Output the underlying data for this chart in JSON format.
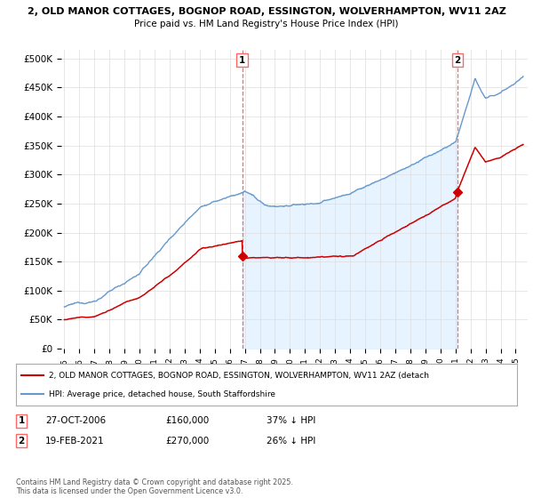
{
  "title_line1": "2, OLD MANOR COTTAGES, BOGNOP ROAD, ESSINGTON, WOLVERHAMPTON, WV11 2AZ",
  "title_line2": "Price paid vs. HM Land Registry's House Price Index (HPI)",
  "yticks": [
    0,
    50000,
    100000,
    150000,
    200000,
    250000,
    300000,
    350000,
    400000,
    450000,
    500000
  ],
  "ytick_labels": [
    "£0",
    "£50K",
    "£100K",
    "£150K",
    "£200K",
    "£250K",
    "£300K",
    "£350K",
    "£400K",
    "£450K",
    "£500K"
  ],
  "ylim": [
    0,
    515000
  ],
  "sale1_date_x": 2006.82,
  "sale1_price": 160000,
  "sale1_label": "27-OCT-2006",
  "sale1_pct": "37% ↓ HPI",
  "sale2_date_x": 2021.12,
  "sale2_price": 270000,
  "sale2_label": "19-FEB-2021",
  "sale2_pct": "26% ↓ HPI",
  "red_color": "#cc0000",
  "blue_color": "#6699cc",
  "blue_fill_color": "#ddeeff",
  "vline_color": "#ff6666",
  "grid_color": "#dddddd",
  "background_color": "#ffffff",
  "legend_label_red": "2, OLD MANOR COTTAGES, BOGNOP ROAD, ESSINGTON, WOLVERHAMPTON, WV11 2AZ (detach",
  "legend_label_blue": "HPI: Average price, detached house, South Staffordshire",
  "footnote": "Contains HM Land Registry data © Crown copyright and database right 2025.\nThis data is licensed under the Open Government Licence v3.0.",
  "xmin": 1994.8,
  "xmax": 2025.8
}
